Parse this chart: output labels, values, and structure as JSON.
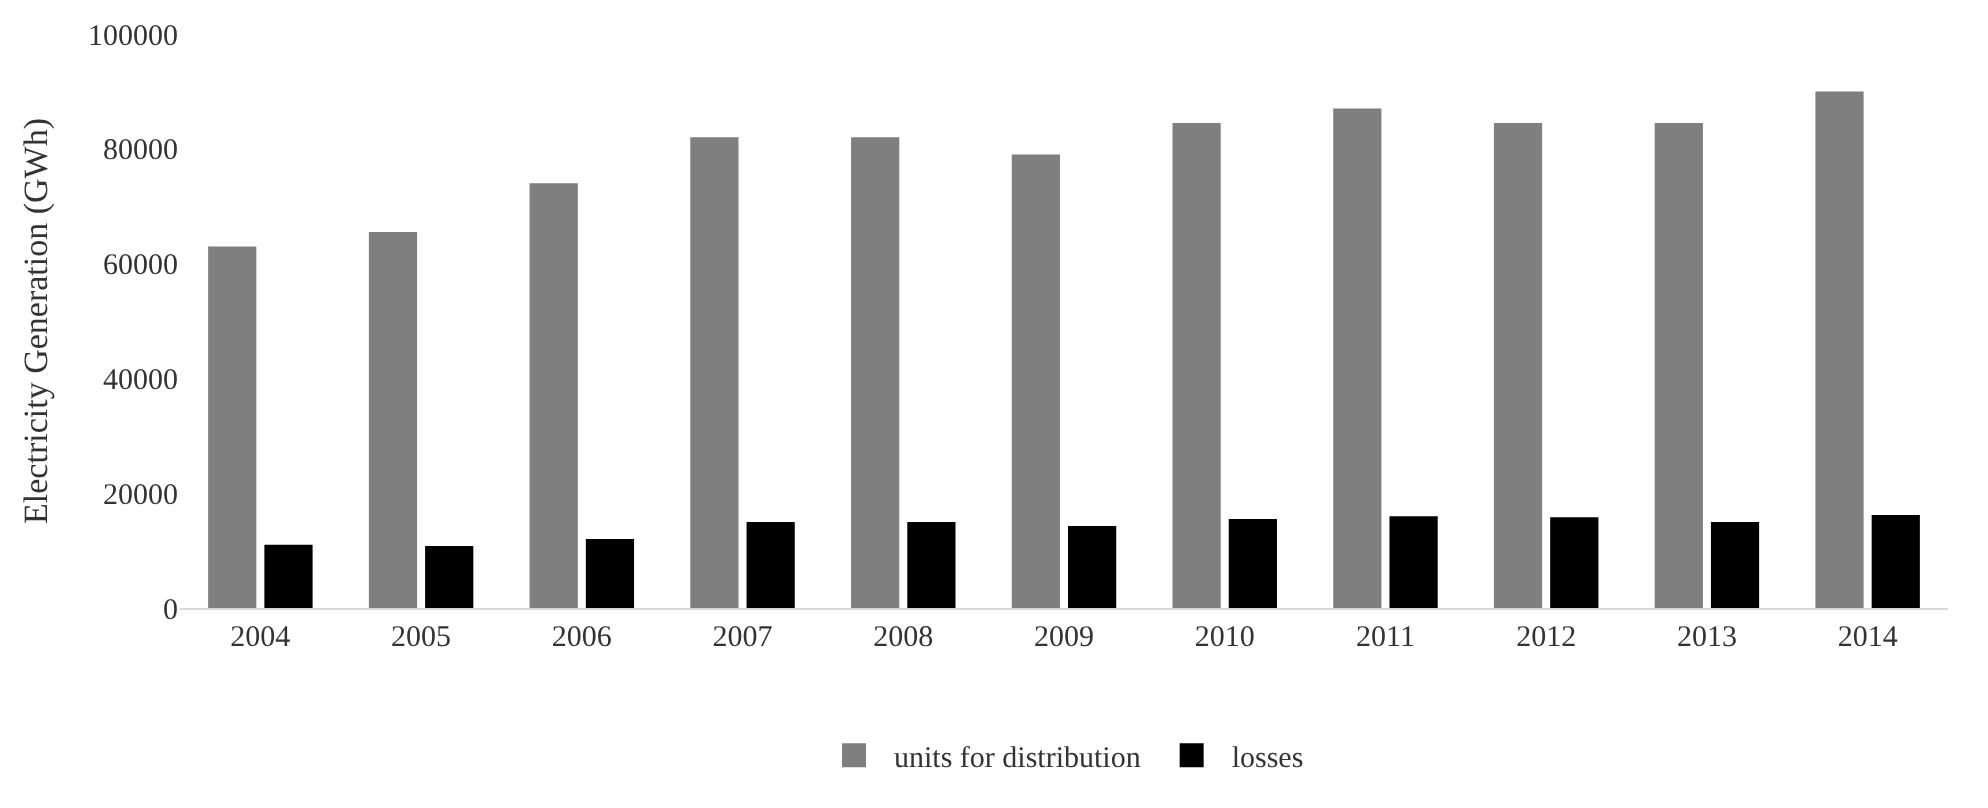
{
  "chart_data": {
    "type": "bar",
    "ylabel": "Electricity Generation (GWh)",
    "categories": [
      "2004",
      "2005",
      "2006",
      "2007",
      "2008",
      "2009",
      "2010",
      "2011",
      "2012",
      "2013",
      "2014"
    ],
    "series": [
      {
        "name": "units for distribution",
        "color": "#7f7f7f",
        "values": [
          63000,
          65500,
          74000,
          82000,
          82000,
          79000,
          84500,
          87000,
          84500,
          84500,
          90000
        ]
      },
      {
        "name": "losses",
        "color": "#000000",
        "values": [
          11000,
          10800,
          12000,
          15000,
          15000,
          14300,
          15500,
          16000,
          15800,
          15000,
          16200
        ]
      }
    ],
    "ylim": [
      0,
      100000
    ],
    "yticks": [
      0,
      20000,
      40000,
      60000,
      80000,
      100000
    ],
    "grid": false,
    "legend": "bottom"
  }
}
